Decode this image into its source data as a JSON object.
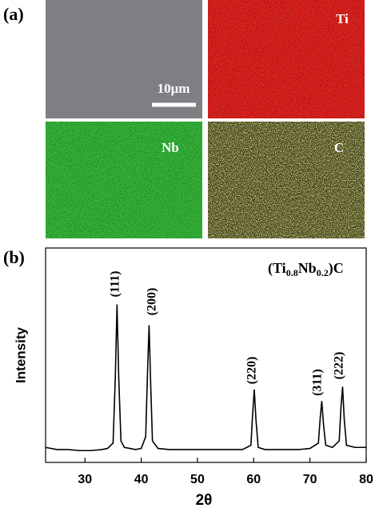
{
  "panel_a": {
    "label": "(a)",
    "maps": [
      "Ti",
      "Nb",
      "C"
    ],
    "scale_bar": "10μm"
  },
  "chart_data": {
    "type": "line",
    "panel_label": "(b)",
    "annotation_formula": [
      "(Ti",
      "0.8",
      "Nb",
      "0.2",
      ")C"
    ],
    "peak_labels": [
      "(111)",
      "(200)",
      "(220)",
      "(311)",
      "(222)"
    ],
    "x_label": "2θ",
    "y_label": "Intensity",
    "color": "#000000",
    "x": [
      23,
      25,
      27,
      29,
      31,
      33,
      34,
      35,
      35.4,
      35.7,
      36,
      36.4,
      37,
      38,
      39,
      40,
      40.8,
      41.1,
      41.4,
      41.7,
      42,
      43,
      45,
      50,
      55,
      58,
      59.5,
      59.8,
      60.1,
      60.4,
      60.8,
      62,
      65,
      68,
      70,
      71.5,
      71.8,
      72.1,
      72.4,
      72.8,
      74,
      75.2,
      75.5,
      75.8,
      76.1,
      76.5,
      78,
      80
    ],
    "values": [
      7,
      6,
      6,
      5.5,
      5.5,
      6,
      6.5,
      9,
      40,
      73.7,
      40,
      10,
      7,
      6.5,
      6,
      6.5,
      12,
      40,
      64,
      35,
      10,
      6.5,
      6,
      6,
      6,
      6,
      8,
      22,
      34,
      20,
      7,
      6,
      6,
      6,
      6.5,
      9,
      20,
      28.6,
      18,
      8,
      7,
      10,
      25,
      35.3,
      20,
      8,
      7,
      7
    ],
    "xlim": [
      23,
      80
    ],
    "ylim": [
      0,
      100
    ],
    "xticks": [
      30,
      40,
      50,
      60,
      70,
      80
    ]
  }
}
